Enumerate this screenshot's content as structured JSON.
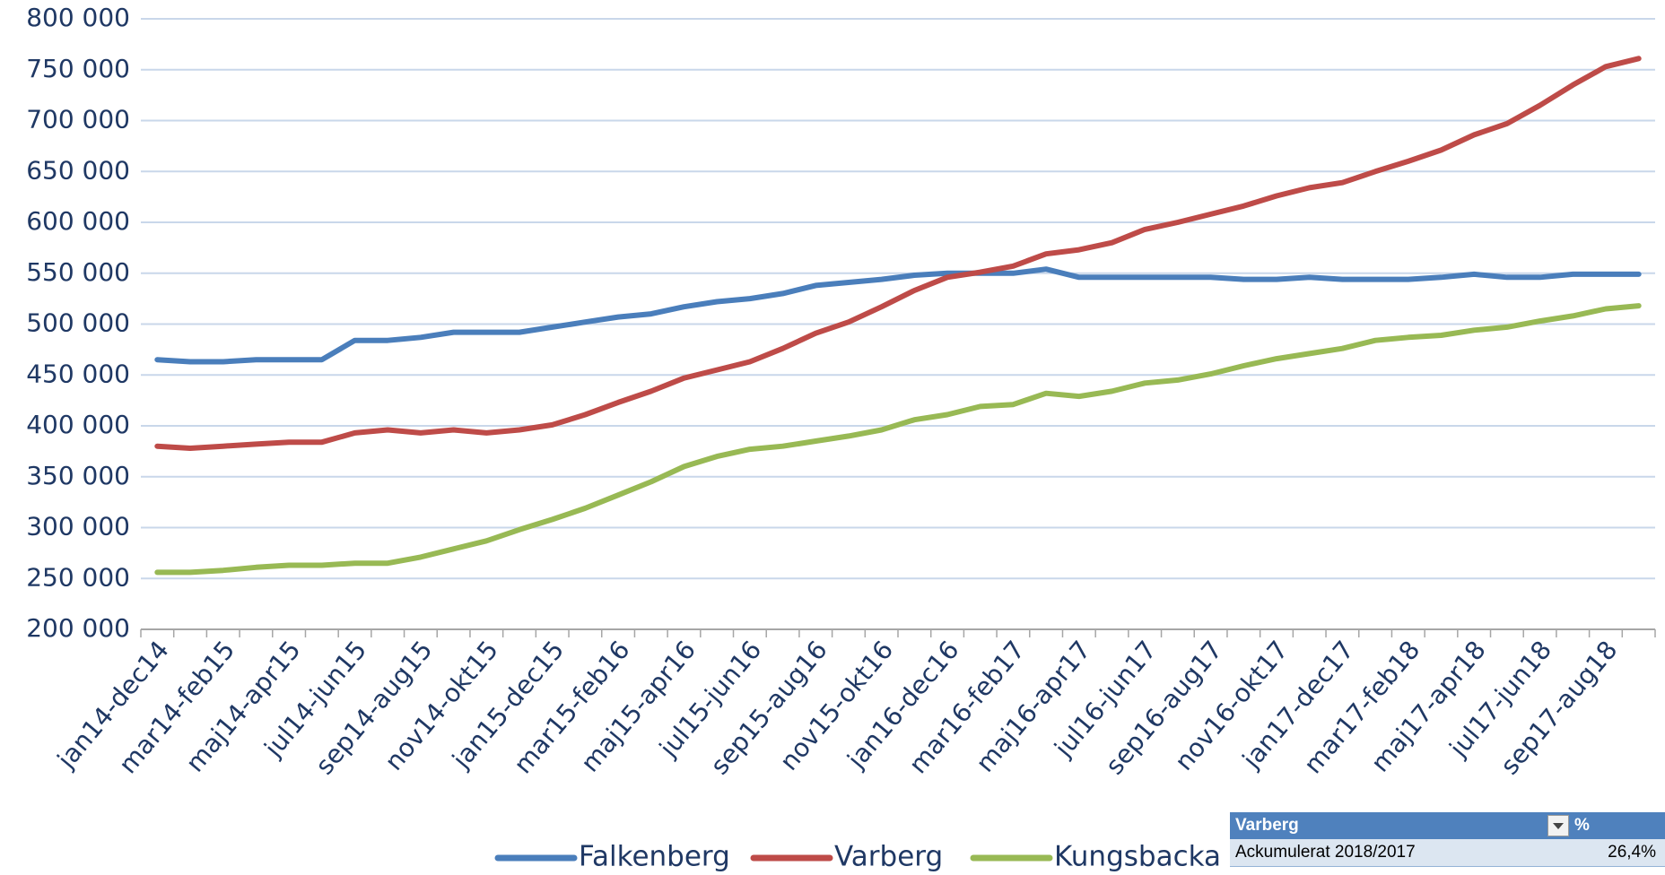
{
  "chart_data": {
    "type": "line",
    "categories": [
      "jan14-dec14",
      null,
      "mar14-feb15",
      null,
      "maj14-apr15",
      null,
      "jul14-jun15",
      null,
      "sep14-aug15",
      null,
      "nov14-okt15",
      null,
      "jan15-dec15",
      null,
      "mar15-feb16",
      null,
      "maj15-apr16",
      null,
      "jul15-jun16",
      null,
      "sep15-aug16",
      null,
      "nov15-okt16",
      null,
      "jan16-dec16",
      null,
      "mar16-feb17",
      null,
      "maj16-apr17",
      null,
      "jul16-jun17",
      null,
      "sep16-aug17",
      null,
      "nov16-okt17",
      null,
      "jan17-dec17",
      null,
      "mar17-feb18",
      null,
      "maj17-apr18",
      null,
      "jul17-jun18",
      null,
      "sep17-aug18",
      null
    ],
    "series": [
      {
        "name": "Falkenberg",
        "color": "#4a7ebb",
        "values": [
          465000,
          463000,
          463000,
          465000,
          465000,
          465000,
          484000,
          484000,
          487000,
          492000,
          492000,
          492000,
          497000,
          502000,
          507000,
          510000,
          517000,
          522000,
          525000,
          530000,
          538000,
          541000,
          544000,
          548000,
          550000,
          550000,
          550000,
          554000,
          546000,
          546000,
          546000,
          546000,
          546000,
          544000,
          544000,
          546000,
          544000,
          544000,
          544000,
          546000,
          549000,
          546000,
          546000,
          549000,
          549000,
          549000
        ]
      },
      {
        "name": "Varberg",
        "color": "#be4b48",
        "values": [
          380000,
          378000,
          380000,
          382000,
          384000,
          384000,
          393000,
          396000,
          393000,
          396000,
          393000,
          396000,
          401000,
          411000,
          423000,
          434000,
          447000,
          455000,
          463000,
          476000,
          491000,
          502000,
          517000,
          533000,
          546000,
          551000,
          557000,
          569000,
          573000,
          580000,
          593000,
          600000,
          608000,
          616000,
          626000,
          634000,
          639000,
          650000,
          660000,
          671000,
          686000,
          697000,
          715000,
          735000,
          753000,
          761000
        ]
      },
      {
        "name": "Kungsbacka",
        "color": "#98b954",
        "values": [
          256000,
          256000,
          258000,
          261000,
          263000,
          263000,
          265000,
          265000,
          271000,
          279000,
          287000,
          298000,
          308000,
          319000,
          332000,
          345000,
          360000,
          370000,
          377000,
          380000,
          385000,
          390000,
          396000,
          406000,
          411000,
          419000,
          421000,
          432000,
          429000,
          434000,
          442000,
          445000,
          451000,
          459000,
          466000,
          471000,
          476000,
          484000,
          487000,
          489000,
          494000,
          497000,
          503000,
          508000,
          515000,
          518000
        ]
      }
    ],
    "ylim": [
      200000,
      800000
    ],
    "yticks": [
      {
        "value": 200000,
        "label": "200 000"
      },
      {
        "value": 250000,
        "label": "250 000"
      },
      {
        "value": 300000,
        "label": "300 000"
      },
      {
        "value": 350000,
        "label": "350 000"
      },
      {
        "value": 400000,
        "label": "400 000"
      },
      {
        "value": 450000,
        "label": "450 000"
      },
      {
        "value": 500000,
        "label": "500 000"
      },
      {
        "value": 550000,
        "label": "550 000"
      },
      {
        "value": 600000,
        "label": "600 000"
      },
      {
        "value": 650000,
        "label": "650 000"
      },
      {
        "value": 700000,
        "label": "700 000"
      },
      {
        "value": 750000,
        "label": "750 000"
      },
      {
        "value": 800000,
        "label": "800 000"
      }
    ],
    "grid": true,
    "legend": "bottom"
  },
  "table": {
    "headers": [
      "Varberg",
      "%"
    ],
    "rows": [
      [
        "Ackumulerat 2018/2017",
        "26,4%"
      ]
    ]
  }
}
